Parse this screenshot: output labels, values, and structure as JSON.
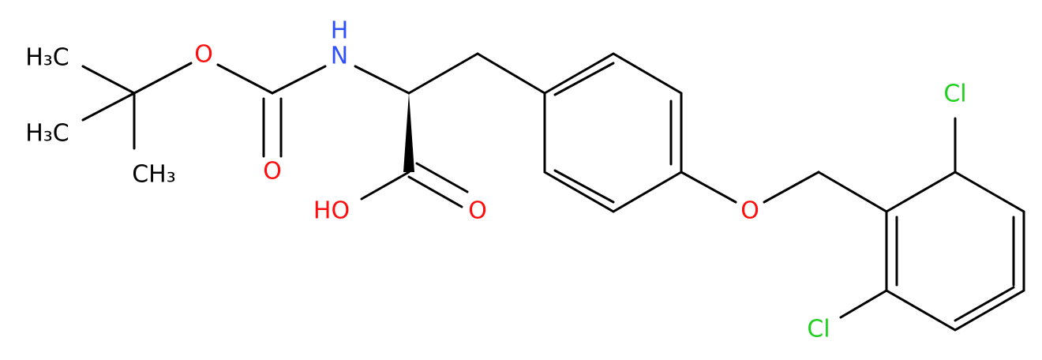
{
  "atoms": [
    {
      "label": "H₃C"
    },
    {
      "label": "H₃C"
    },
    {
      "label": "CH₃"
    },
    {
      "label": "O"
    },
    {
      "label": "O"
    },
    {
      "label": "H"
    },
    {
      "label": "N"
    },
    {
      "label": "HO"
    },
    {
      "label": "O"
    },
    {
      "label": "O"
    },
    {
      "label": "Cl"
    },
    {
      "label": "Cl"
    }
  ]
}
